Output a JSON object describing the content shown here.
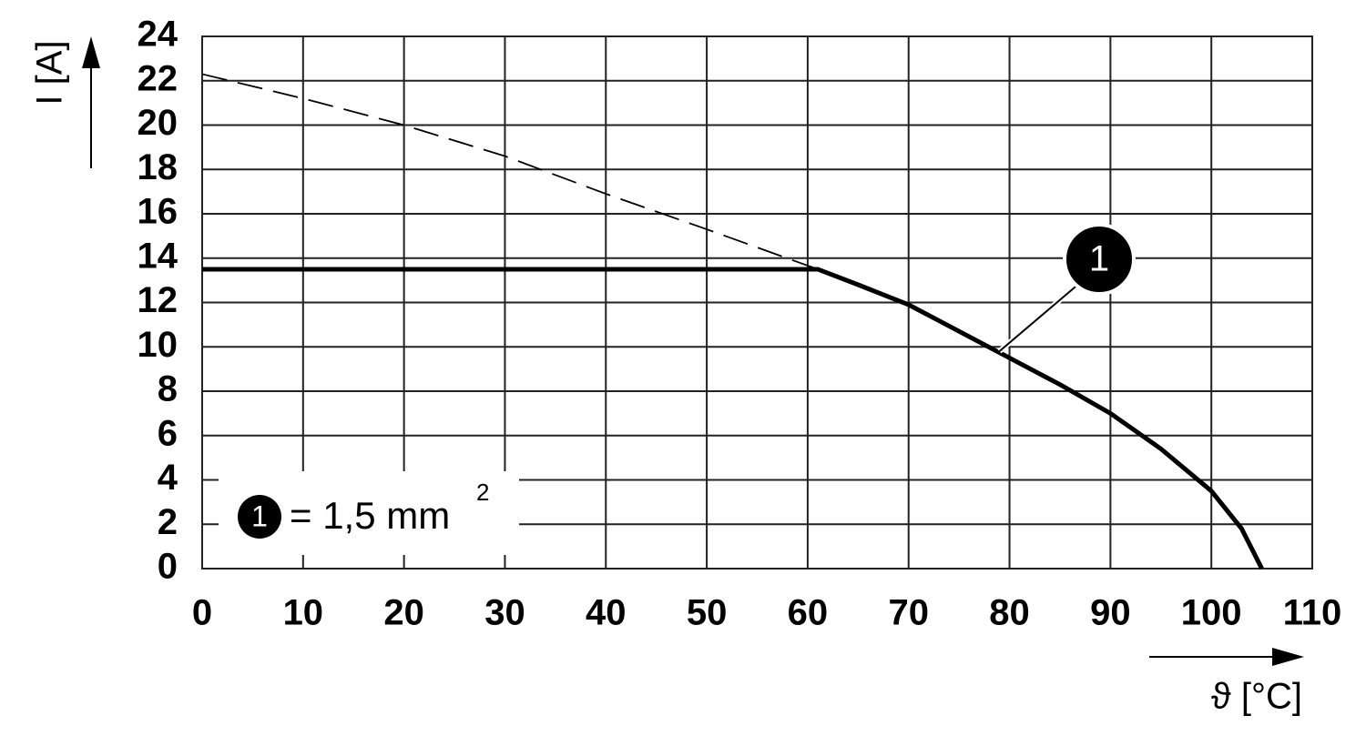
{
  "chart_data": {
    "type": "line",
    "xlabel": "ϑ [°C]",
    "ylabel": "I [A]",
    "xlim": [
      0,
      110
    ],
    "ylim": [
      0,
      24
    ],
    "xticks": [
      0,
      10,
      20,
      30,
      40,
      50,
      60,
      70,
      80,
      90,
      100,
      110
    ],
    "yticks": [
      0,
      2,
      4,
      6,
      8,
      10,
      12,
      14,
      16,
      18,
      20,
      22,
      24
    ],
    "grid": true,
    "series": [
      {
        "color": "#000000",
        "dashed": false,
        "x": [
          0,
          61,
          65,
          70,
          75,
          80,
          85,
          90,
          95,
          100,
          103,
          105
        ],
        "values": [
          13.5,
          13.5,
          12.8,
          11.9,
          10.7,
          9.5,
          8.3,
          7.0,
          5.4,
          3.5,
          1.8,
          0
        ]
      },
      {
        "color": "#000000",
        "dashed": true,
        "x": [
          0,
          10,
          20,
          30,
          40,
          50,
          61
        ],
        "values": [
          22.3,
          21.2,
          20.0,
          18.6,
          16.9,
          15.3,
          13.5
        ]
      }
    ],
    "annotation": {
      "label": "1",
      "x": 79,
      "y": 9.8
    },
    "legend": {
      "marker": "1",
      "text": "= 1,5 mm",
      "superscript": "2"
    }
  }
}
